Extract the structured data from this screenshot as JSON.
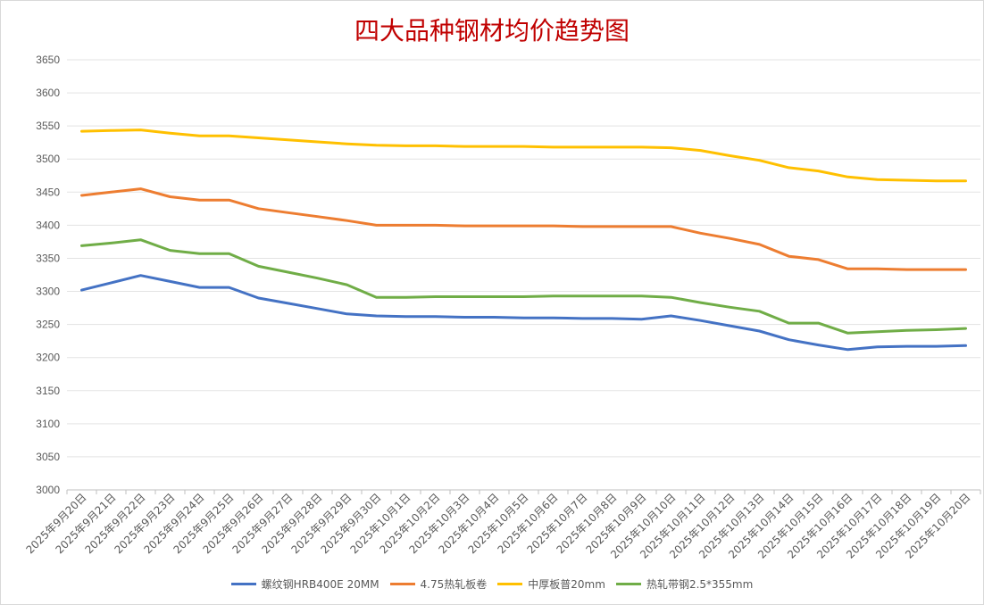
{
  "chart_data": {
    "type": "line",
    "title": "四大品种钢材均价趋势图",
    "categories": [
      "2025年9月20日",
      "2025年9月21日",
      "2025年9月22日",
      "2025年9月23日",
      "2025年9月24日",
      "2025年9月25日",
      "2025年9月26日",
      "2025年9月27日",
      "2025年9月28日",
      "2025年9月29日",
      "2025年9月30日",
      "2025年10月1日",
      "2025年10月2日",
      "2025年10月3日",
      "2025年10月4日",
      "2025年10月5日",
      "2025年10月6日",
      "2025年10月7日",
      "2025年10月8日",
      "2025年10月9日",
      "2025年10月10日",
      "2025年10月11日",
      "2025年10月12日",
      "2025年10月13日",
      "2025年10月14日",
      "2025年10月15日",
      "2025年10月16日",
      "2025年10月17日",
      "2025年10月18日",
      "2025年10月19日",
      "2025年10月20日"
    ],
    "ylim": [
      3000,
      3650
    ],
    "yticks": [
      3000,
      3050,
      3100,
      3150,
      3200,
      3250,
      3300,
      3350,
      3400,
      3450,
      3500,
      3550,
      3600,
      3650
    ],
    "grid": true,
    "legend_position": "bottom",
    "series": [
      {
        "name": "螺纹钢HRB400E 20MM",
        "color": "#4472c4",
        "values": [
          3302,
          3313,
          3324,
          3315,
          3306,
          3306,
          3290,
          3282,
          3274,
          3266,
          3263,
          3262,
          3262,
          3261,
          3261,
          3260,
          3260,
          3259,
          3259,
          3258,
          3263,
          3256,
          3248,
          3240,
          3227,
          3219,
          3212,
          3216,
          3217,
          3217,
          3218
        ]
      },
      {
        "name": "4.75热轧板卷",
        "color": "#ed7d31",
        "values": [
          3445,
          3450,
          3455,
          3443,
          3438,
          3438,
          3425,
          3419,
          3413,
          3407,
          3400,
          3400,
          3400,
          3399,
          3399,
          3399,
          3399,
          3398,
          3398,
          3398,
          3398,
          3388,
          3380,
          3371,
          3353,
          3348,
          3334,
          3334,
          3333,
          3333,
          3333
        ]
      },
      {
        "name": "中厚板普20mm",
        "color": "#ffc000",
        "values": [
          3542,
          3543,
          3544,
          3539,
          3535,
          3535,
          3532,
          3529,
          3526,
          3523,
          3521,
          3520,
          3520,
          3519,
          3519,
          3519,
          3518,
          3518,
          3518,
          3518,
          3517,
          3513,
          3505,
          3498,
          3487,
          3482,
          3473,
          3469,
          3468,
          3467,
          3467
        ]
      },
      {
        "name": "热轧带钢2.5*355mm",
        "color": "#70ad47",
        "values": [
          3369,
          3373,
          3378,
          3362,
          3357,
          3357,
          3338,
          3329,
          3320,
          3310,
          3291,
          3291,
          3292,
          3292,
          3292,
          3292,
          3293,
          3293,
          3293,
          3293,
          3291,
          3283,
          3276,
          3270,
          3252,
          3252,
          3237,
          3239,
          3241,
          3242,
          3244
        ]
      }
    ]
  }
}
